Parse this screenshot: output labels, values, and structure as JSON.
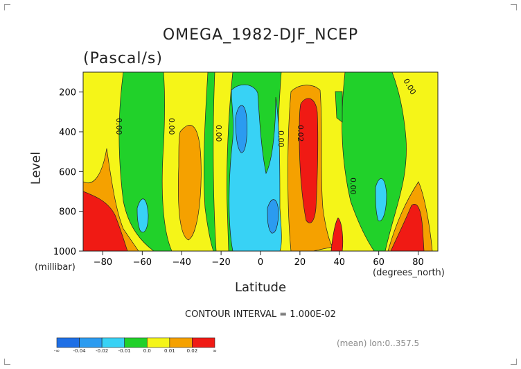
{
  "chart_data": {
    "type": "heatmap",
    "title": "OMEGA_1982-DJF_NCEP",
    "subtitle": "(Pascal/s)",
    "xlabel": "Latitude",
    "x_units_label": "(degrees_north)",
    "ylabel": "Level",
    "y_units_label": "(millibar)",
    "xlim": [
      -90,
      90
    ],
    "ylim": [
      1000,
      100
    ],
    "x_ticks": [
      "-80",
      "-60",
      "-40",
      "-20",
      "0",
      "20",
      "40",
      "60",
      "80"
    ],
    "x_tick_values": [
      -80,
      -60,
      -40,
      -20,
      0,
      20,
      40,
      60,
      80
    ],
    "y_ticks": [
      "200",
      "400",
      "600",
      "800",
      "1000"
    ],
    "y_tick_values": [
      200,
      400,
      600,
      800,
      1000
    ],
    "contour_interval_text": "CONTOUR INTERVAL = 1.000E-02",
    "mean_text": "(mean) lon:0..357.5",
    "colorbar": {
      "labels": [
        "-∞",
        "-0.04",
        "-0.02",
        "-0.01",
        "0.0",
        "0.01",
        "0.02",
        "∞"
      ],
      "colors": [
        "#1e6fe6",
        "#2b9bf0",
        "#38d2f5",
        "#21d12a",
        "#f5f518",
        "#f5a100",
        "#f01a14"
      ]
    },
    "contour_labels": [
      "0.00",
      "0.00",
      "0.00",
      "0.00",
      "0.02",
      "0.00",
      "0.00"
    ]
  }
}
